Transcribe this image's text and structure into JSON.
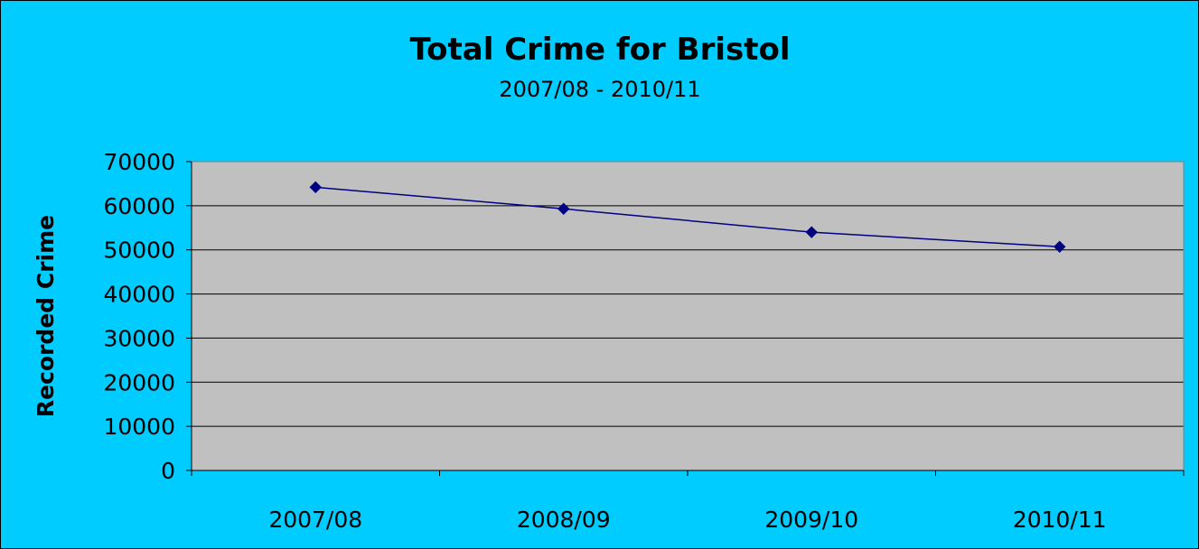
{
  "colors": {
    "background": "#00CCFF",
    "plot_area": "#C0C0C0",
    "series_line": "#000080",
    "gridline": "#000000"
  },
  "chart_data": {
    "type": "line",
    "title": "Total Crime for Bristol",
    "subtitle": "2007/08 - 2010/11",
    "xlabel": "",
    "ylabel": "Recorded Crime",
    "categories": [
      "2007/08",
      "2008/09",
      "2009/10",
      "2010/11"
    ],
    "series": [
      {
        "values": [
          64200,
          59300,
          54000,
          50700
        ],
        "marker": "diamond"
      }
    ],
    "ylim": [
      0,
      70000
    ],
    "yticks": [
      "0",
      "10000",
      "20000",
      "30000",
      "40000",
      "50000",
      "60000",
      "70000"
    ],
    "grid": true,
    "legend": "none"
  }
}
